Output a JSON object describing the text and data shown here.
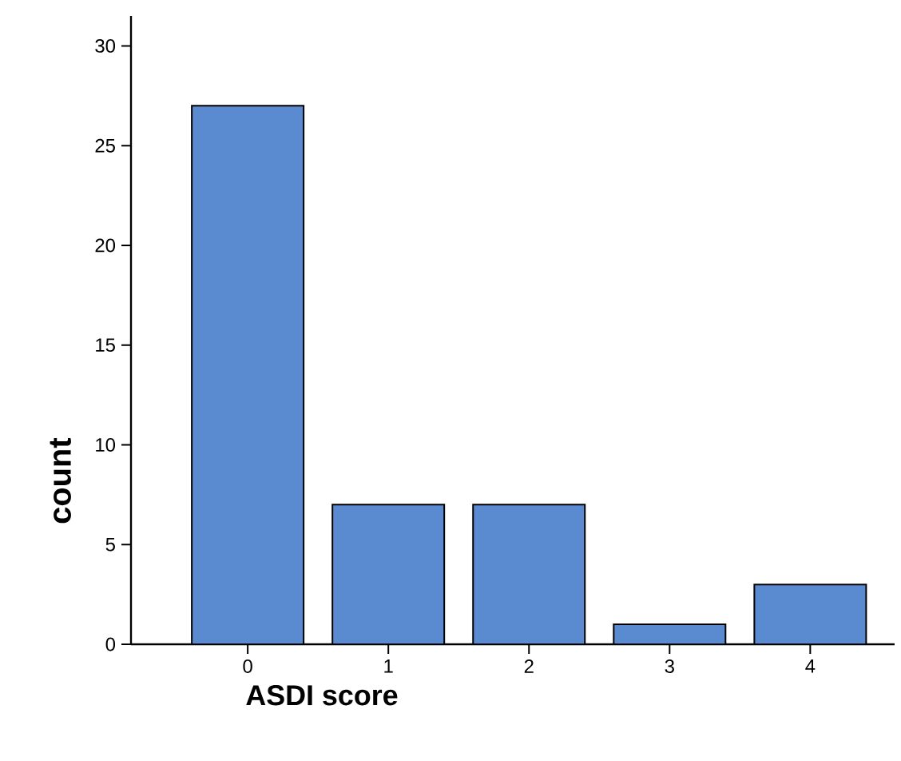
{
  "chart_data": {
    "type": "bar",
    "xlabel": "ASDI score",
    "ylabel": "count",
    "categories": [
      "0",
      "1",
      "2",
      "3",
      "4"
    ],
    "values": [
      27,
      7,
      7,
      1,
      3
    ],
    "color": "#5a8ad0",
    "ylim": [
      0,
      31.5
    ],
    "yticks": [
      0,
      5,
      10,
      15,
      20,
      25,
      30
    ],
    "grid": false
  }
}
